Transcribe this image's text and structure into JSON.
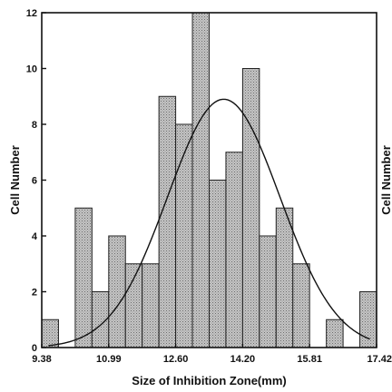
{
  "chart_data": {
    "type": "bar",
    "title": "",
    "xlabel": "Size of Inhibition Zone(mm)",
    "ylabel": "Cell Number",
    "second_ylabel_partial": "Cell Number",
    "x_tick_labels": [
      "9.38",
      "10.99",
      "12.60",
      "14.20",
      "15.81",
      "17.42"
    ],
    "x_range": [
      9.38,
      17.42
    ],
    "ylim": [
      0,
      12
    ],
    "y_ticks": [
      0,
      2,
      4,
      6,
      8,
      10,
      12
    ],
    "bins": 20,
    "values": [
      1,
      0,
      5,
      2,
      4,
      3,
      3,
      9,
      8,
      12,
      6,
      7,
      10,
      4,
      5,
      3,
      0,
      1,
      0,
      2
    ],
    "fit_curve": {
      "type": "normal",
      "mean": 13.75,
      "peak": 8.9,
      "sd": 1.35
    },
    "bar_color": "#a8a8a8",
    "grid": false
  }
}
